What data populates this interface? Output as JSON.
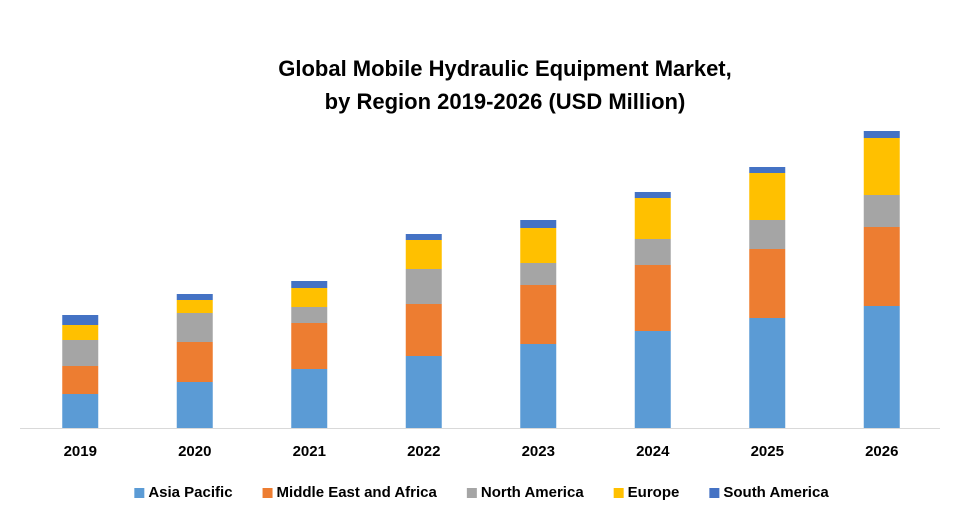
{
  "chart_data": {
    "type": "bar",
    "stacked": true,
    "title": [
      "Global Mobile Hydraulic Equipment Market,",
      "by Region 2019-2026 (USD Million)"
    ],
    "categories": [
      "2019",
      "2020",
      "2021",
      "2022",
      "2023",
      "2024",
      "2025",
      "2026"
    ],
    "series": [
      {
        "name": "Asia Pacific",
        "color": "#5b9bd5",
        "values": [
          34,
          46,
          59,
          72,
          84,
          97,
          110,
          122
        ]
      },
      {
        "name": "Middle East and Africa",
        "color": "#ed7d31",
        "values": [
          28,
          40,
          46,
          52,
          59,
          66,
          69,
          79
        ]
      },
      {
        "name": "North America",
        "color": "#a5a5a5",
        "values": [
          26,
          29,
          16,
          35,
          22,
          26,
          29,
          32
        ]
      },
      {
        "name": "Europe",
        "color": "#ffc000",
        "values": [
          15,
          13,
          19,
          29,
          35,
          41,
          47,
          57
        ]
      },
      {
        "name": "South America",
        "color": "#4472c4",
        "values": [
          10,
          6,
          7,
          6,
          8,
          6,
          6,
          7
        ]
      }
    ],
    "legend": "bottom"
  }
}
